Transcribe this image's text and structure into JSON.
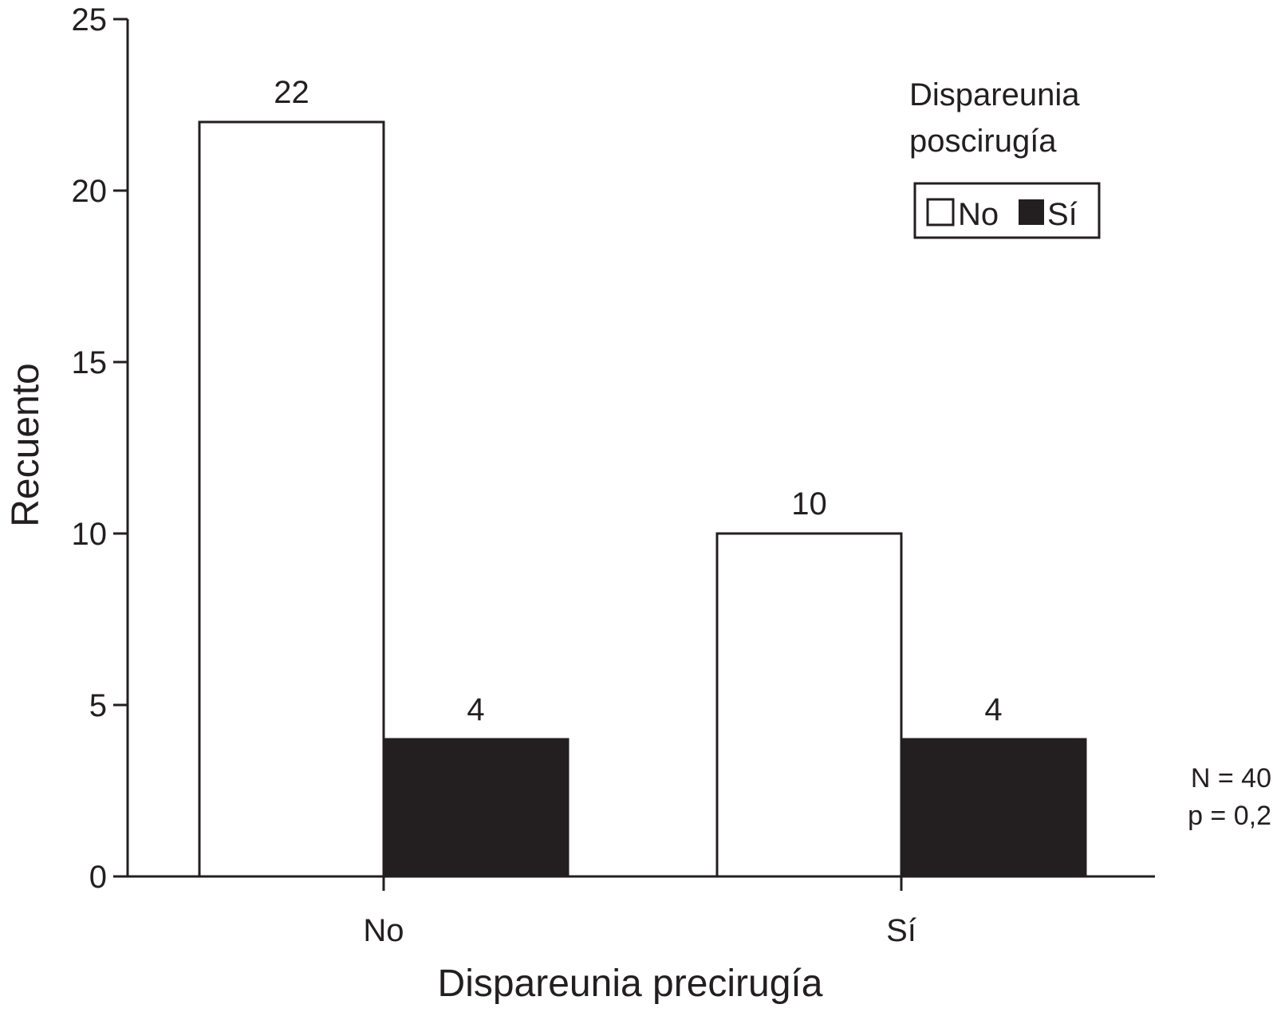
{
  "chart_data": {
    "type": "bar",
    "xlabel": "Dispareunia precirugía",
    "ylabel": "Recuento",
    "categories": [
      "No",
      "Sí"
    ],
    "series": [
      {
        "name": "No",
        "values": [
          22,
          10
        ],
        "color": "#ffffff"
      },
      {
        "name": "Sí",
        "values": [
          4,
          4
        ],
        "color": "#231f20"
      }
    ],
    "data_labels": [
      [
        "22",
        "10"
      ],
      [
        "4",
        "4"
      ]
    ],
    "ylim": [
      0,
      25
    ],
    "yticks": [
      0,
      5,
      10,
      15,
      20,
      25
    ],
    "grid": false,
    "legend": {
      "title_lines": [
        "Dispareunia",
        "poscirugía"
      ],
      "placement": "top-right"
    },
    "annotations": [
      "N = 40",
      "p = 0,2"
    ]
  },
  "colors": {
    "ink": "#231f20",
    "background": "#ffffff"
  }
}
